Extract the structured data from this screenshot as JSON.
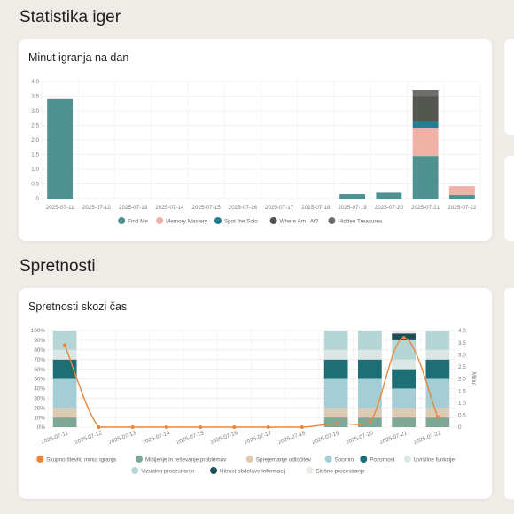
{
  "sections": {
    "game_stats_title": "Statistika iger",
    "skills_title": "Spretnosti"
  },
  "cards": {
    "minutes_title": "Minut igranja na dan",
    "skills_title": "Spretnosti skozi čas"
  },
  "colors": {
    "background": "#efebe6",
    "card": "#ffffff",
    "grid": "#ececec",
    "axis_text": "#7a7a7a",
    "orange_line": "#e8873a"
  },
  "chart_data": [
    {
      "type": "bar",
      "stacked": true,
      "title": "Minut igranja na dan",
      "categories": [
        "2025-07-11",
        "2025-07-12",
        "2025-07-13",
        "2025-07-14",
        "2025-07-15",
        "2025-07-16",
        "2025-07-17",
        "2025-07-18",
        "2025-07-19",
        "2025-07-20",
        "2025-07-21",
        "2025-07-22"
      ],
      "ylim": [
        0,
        4.0
      ],
      "yticks": [
        "0",
        "0.5",
        "1.0",
        "1.5",
        "2.0",
        "2.5",
        "3.0",
        "3.5",
        "4.0"
      ],
      "grid": true,
      "legend_position": "bottom",
      "series": [
        {
          "name": "Find Me",
          "color": "#4f9190",
          "values": [
            3.4,
            0,
            0,
            0,
            0,
            0,
            0,
            0,
            0.15,
            0.2,
            1.45,
            0.12
          ]
        },
        {
          "name": "Memory Mastery",
          "color": "#f0b2a6",
          "values": [
            0,
            0,
            0,
            0,
            0,
            0,
            0,
            0,
            0,
            0,
            0.95,
            0.3
          ]
        },
        {
          "name": "Spot the Solo",
          "color": "#237f93",
          "values": [
            0,
            0,
            0,
            0,
            0,
            0,
            0,
            0,
            0,
            0,
            0.25,
            0
          ]
        },
        {
          "name": "Where Am I At?",
          "color": "#53574f",
          "values": [
            0,
            0,
            0,
            0,
            0,
            0,
            0,
            0,
            0,
            0,
            0.85,
            0
          ]
        },
        {
          "name": "Hidden Treasures",
          "color": "#6e6e6c",
          "values": [
            0,
            0,
            0,
            0,
            0,
            0,
            0,
            0,
            0,
            0,
            0.2,
            0
          ]
        }
      ]
    },
    {
      "type": "bar",
      "stacked": true,
      "percent": true,
      "title": "Spretnosti skozi čas",
      "categories": [
        "2025-07-11",
        "2025-07-12",
        "2025-07-13",
        "2025-07-14",
        "2025-07-15",
        "2025-07-16",
        "2025-07-17",
        "2025-07-18",
        "2025-07-19",
        "2025-07-20",
        "2025-07-21",
        "2025-07-22"
      ],
      "ylim": [
        0,
        100
      ],
      "yticks_left": [
        "0%",
        "10%",
        "20%",
        "30%",
        "40%",
        "50%",
        "60%",
        "70%",
        "80%",
        "90%",
        "100%"
      ],
      "y2lim": [
        0,
        4.0
      ],
      "yticks_right": [
        "0",
        "0.5",
        "1.0",
        "1.5",
        "2.0",
        "2.5",
        "3.0",
        "3.5",
        "4.0"
      ],
      "y2label": "Minut",
      "grid": true,
      "legend_position": "bottom",
      "series": [
        {
          "name": "Mišljenje in reševanje problemov",
          "color": "#7ea895",
          "values": [
            10,
            0,
            0,
            0,
            0,
            0,
            0,
            0,
            10,
            10,
            10,
            10
          ]
        },
        {
          "name": "Sprejemanje odločitev",
          "color": "#dccab2",
          "values": [
            10,
            0,
            0,
            0,
            0,
            0,
            0,
            0,
            10,
            10,
            10,
            10
          ]
        },
        {
          "name": "Spomin",
          "color": "#a5cdd5",
          "values": [
            30,
            0,
            0,
            0,
            0,
            0,
            0,
            0,
            30,
            30,
            20,
            30
          ]
        },
        {
          "name": "Pozornost",
          "color": "#1d6e75",
          "values": [
            20,
            0,
            0,
            0,
            0,
            0,
            0,
            0,
            20,
            20,
            20,
            20
          ]
        },
        {
          "name": "Izvršilne funkcije",
          "color": "#dbe7e4",
          "values": [
            10,
            0,
            0,
            0,
            0,
            0,
            0,
            0,
            10,
            10,
            10,
            10
          ]
        },
        {
          "name": "Vizualno procesiranje",
          "color": "#b6d6d6",
          "values": [
            20,
            0,
            0,
            0,
            0,
            0,
            0,
            0,
            20,
            20,
            20,
            20
          ]
        },
        {
          "name": "Hitrost obdelave informacij",
          "color": "#1d4e55",
          "values": [
            0,
            0,
            0,
            0,
            0,
            0,
            0,
            0,
            0,
            0,
            7,
            0
          ]
        },
        {
          "name": "Slušno procesiranje",
          "color": "#eceae6",
          "values": [
            0,
            0,
            0,
            0,
            0,
            0,
            0,
            0,
            0,
            0,
            3,
            0
          ]
        }
      ],
      "line": {
        "name": "Skupno število minut igranja",
        "color": "#e8873a",
        "axis": "right",
        "values": [
          3.4,
          0,
          0,
          0,
          0,
          0,
          0,
          0,
          0.15,
          0.2,
          3.7,
          0.42
        ]
      }
    }
  ]
}
